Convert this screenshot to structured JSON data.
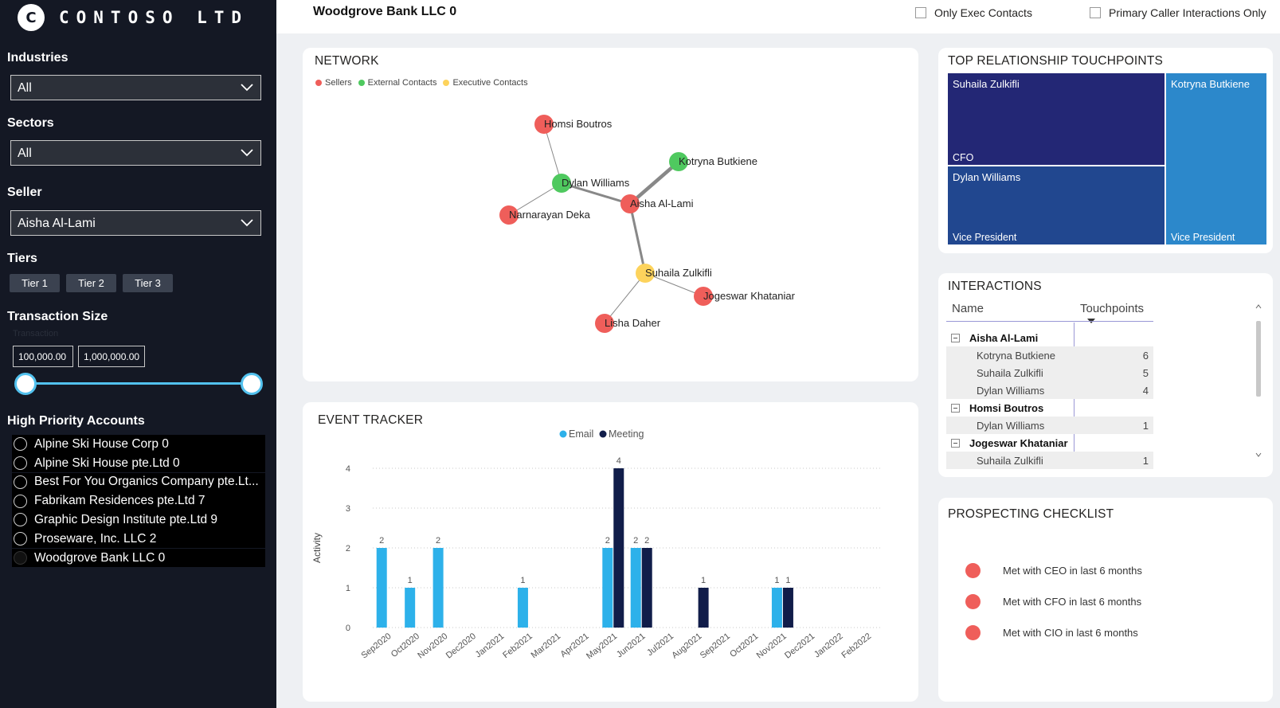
{
  "brand": {
    "mark": "C",
    "name": "CONTOSO LTD"
  },
  "sidebar": {
    "industries": {
      "label": "Industries",
      "value": "All"
    },
    "sectors": {
      "label": "Sectors",
      "value": "All"
    },
    "seller": {
      "label": "Seller",
      "value": "Aisha Al-Lami"
    },
    "tiers": {
      "label": "Tiers",
      "items": [
        "Tier 1",
        "Tier 2",
        "Tier 3"
      ]
    },
    "transaction_size": {
      "label": "Transaction Size",
      "sublabel": "Transaction",
      "min": "100,000.00",
      "max": "1,000,000.00",
      "range_fraction": [
        0,
        1
      ]
    },
    "high_priority": {
      "label": "High Priority Accounts",
      "items": [
        {
          "name": "Alpine Ski House Corp 0",
          "selected": false
        },
        {
          "name": "Alpine Ski House pte.Ltd 0",
          "selected": false
        },
        {
          "name": "Best For You Organics Company pte.Lt...",
          "selected": false
        },
        {
          "name": "Fabrikam Residences pte.Ltd 7",
          "selected": false
        },
        {
          "name": "Graphic Design Institute pte.Ltd 9",
          "selected": false
        },
        {
          "name": "Proseware, Inc. LLC 2",
          "selected": false
        },
        {
          "name": "Woodgrove Bank LLC 0",
          "selected": true
        }
      ]
    }
  },
  "header": {
    "title": "Woodgrove Bank LLC 0",
    "check_exec": "Only Exec Contacts",
    "check_primary": "Primary Caller Interactions Only"
  },
  "network": {
    "title": "NETWORK",
    "legend": [
      {
        "label": "Sellers",
        "color": "#ef5e5a"
      },
      {
        "label": "External Contacts",
        "color": "#4fc95f"
      },
      {
        "label": "Executive Contacts",
        "color": "#fdd35c"
      }
    ],
    "nodes": [
      "Homsi Boutros",
      "Kotryna Butkiene",
      "Dylan Williams",
      "Aisha Al-Lami",
      "Narnarayan Deka",
      "Suhaila Zulkifli",
      "Jogeswar Khataniar",
      "Lisha Daher"
    ]
  },
  "touchpoints": {
    "title": "TOP RELATIONSHIP TOUCHPOINTS",
    "tiles": [
      {
        "name": "Suhaila Zulkifli",
        "role": "CFO",
        "color": "#232775"
      },
      {
        "name": "Kotryna Butkiene",
        "role": "Vice President",
        "color": "#2c88cb"
      },
      {
        "name": "Dylan Williams",
        "role": "Vice President",
        "color": "#21478f"
      }
    ]
  },
  "interactions": {
    "title": "INTERACTIONS",
    "col_name": "Name",
    "col_touch": "Touchpoints",
    "rows": [
      {
        "type": "parent",
        "name": "Aisha Al-Lami",
        "value": ""
      },
      {
        "type": "child",
        "name": "Kotryna Butkiene",
        "value": "6"
      },
      {
        "type": "child",
        "name": "Suhaila Zulkifli",
        "value": "5"
      },
      {
        "type": "child",
        "name": "Dylan Williams",
        "value": "4"
      },
      {
        "type": "parent",
        "name": "Homsi Boutros",
        "value": ""
      },
      {
        "type": "child",
        "name": "Dylan Williams",
        "value": "1"
      },
      {
        "type": "parent",
        "name": "Jogeswar Khataniar",
        "value": ""
      },
      {
        "type": "child",
        "name": "Suhaila Zulkifli",
        "value": "1"
      }
    ]
  },
  "checklist": {
    "title": "PROSPECTING CHECKLIST",
    "items": [
      "Met with CEO in last 6 months",
      "Met with CFO in last 6 months",
      "Met with CIO in last 6 months"
    ],
    "dot_color": "#ef5e5a"
  },
  "chart_data": {
    "type": "bar",
    "title": "EVENT TRACKER",
    "ylabel": "Activity",
    "xlabel": "",
    "ylim": [
      0,
      4
    ],
    "yticks": [
      0,
      1,
      2,
      3,
      4
    ],
    "grid": true,
    "legend_position": "top-center",
    "categories": [
      "Sep2020",
      "Oct2020",
      "Nov2020",
      "Dec2020",
      "Jan2021",
      "Feb2021",
      "Mar2021",
      "Apr2021",
      "May2021",
      "Jun2021",
      "Jul2021",
      "Aug2021",
      "Sep2021",
      "Oct2021",
      "Nov2021",
      "Dec2021",
      "Jan2022",
      "Feb2022"
    ],
    "series": [
      {
        "name": "Email",
        "color": "#2db1ea",
        "values": [
          2,
          1,
          2,
          0,
          0,
          1,
          0,
          0,
          2,
          2,
          0,
          0,
          0,
          0,
          1,
          0,
          0,
          0
        ]
      },
      {
        "name": "Meeting",
        "color": "#111d4a",
        "values": [
          0,
          0,
          0,
          0,
          0,
          0,
          0,
          0,
          4,
          2,
          0,
          1,
          0,
          0,
          1,
          0,
          0,
          0
        ]
      }
    ]
  }
}
